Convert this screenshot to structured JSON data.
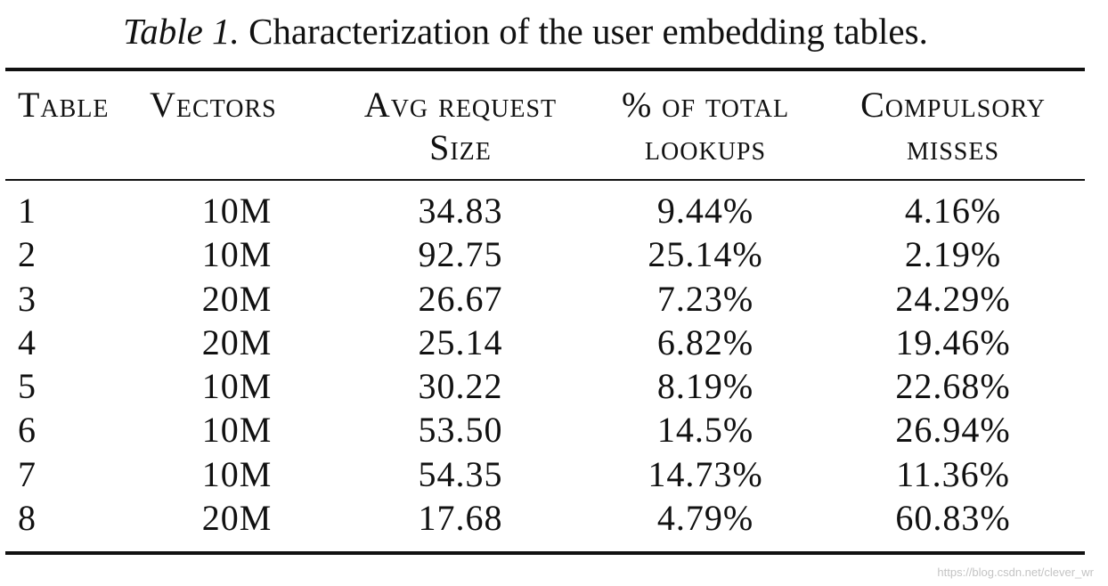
{
  "caption": {
    "label": "Table 1.",
    "text": "Characterization of the user embedding tables."
  },
  "columns": [
    {
      "line1": "Table",
      "line2": ""
    },
    {
      "line1": "Vectors",
      "line2": ""
    },
    {
      "line1": "Avg request",
      "line2": "Size"
    },
    {
      "line1": "% of total",
      "line2": "lookups"
    },
    {
      "line1": "Compulsory",
      "line2": "misses"
    }
  ],
  "rows": [
    [
      "1",
      "10M",
      "34.83",
      "9.44%",
      "4.16%"
    ],
    [
      "2",
      "10M",
      "92.75",
      "25.14%",
      "2.19%"
    ],
    [
      "3",
      "20M",
      "26.67",
      "7.23%",
      "24.29%"
    ],
    [
      "4",
      "20M",
      "25.14",
      "6.82%",
      "19.46%"
    ],
    [
      "5",
      "10M",
      "30.22",
      "8.19%",
      "22.68%"
    ],
    [
      "6",
      "10M",
      "53.50",
      "14.5%",
      "26.94%"
    ],
    [
      "7",
      "10M",
      "54.35",
      "14.73%",
      "11.36%"
    ],
    [
      "8",
      "20M",
      "17.68",
      "4.79%",
      "60.83%"
    ]
  ],
  "watermark": "https://blog.csdn.net/clever_wr"
}
